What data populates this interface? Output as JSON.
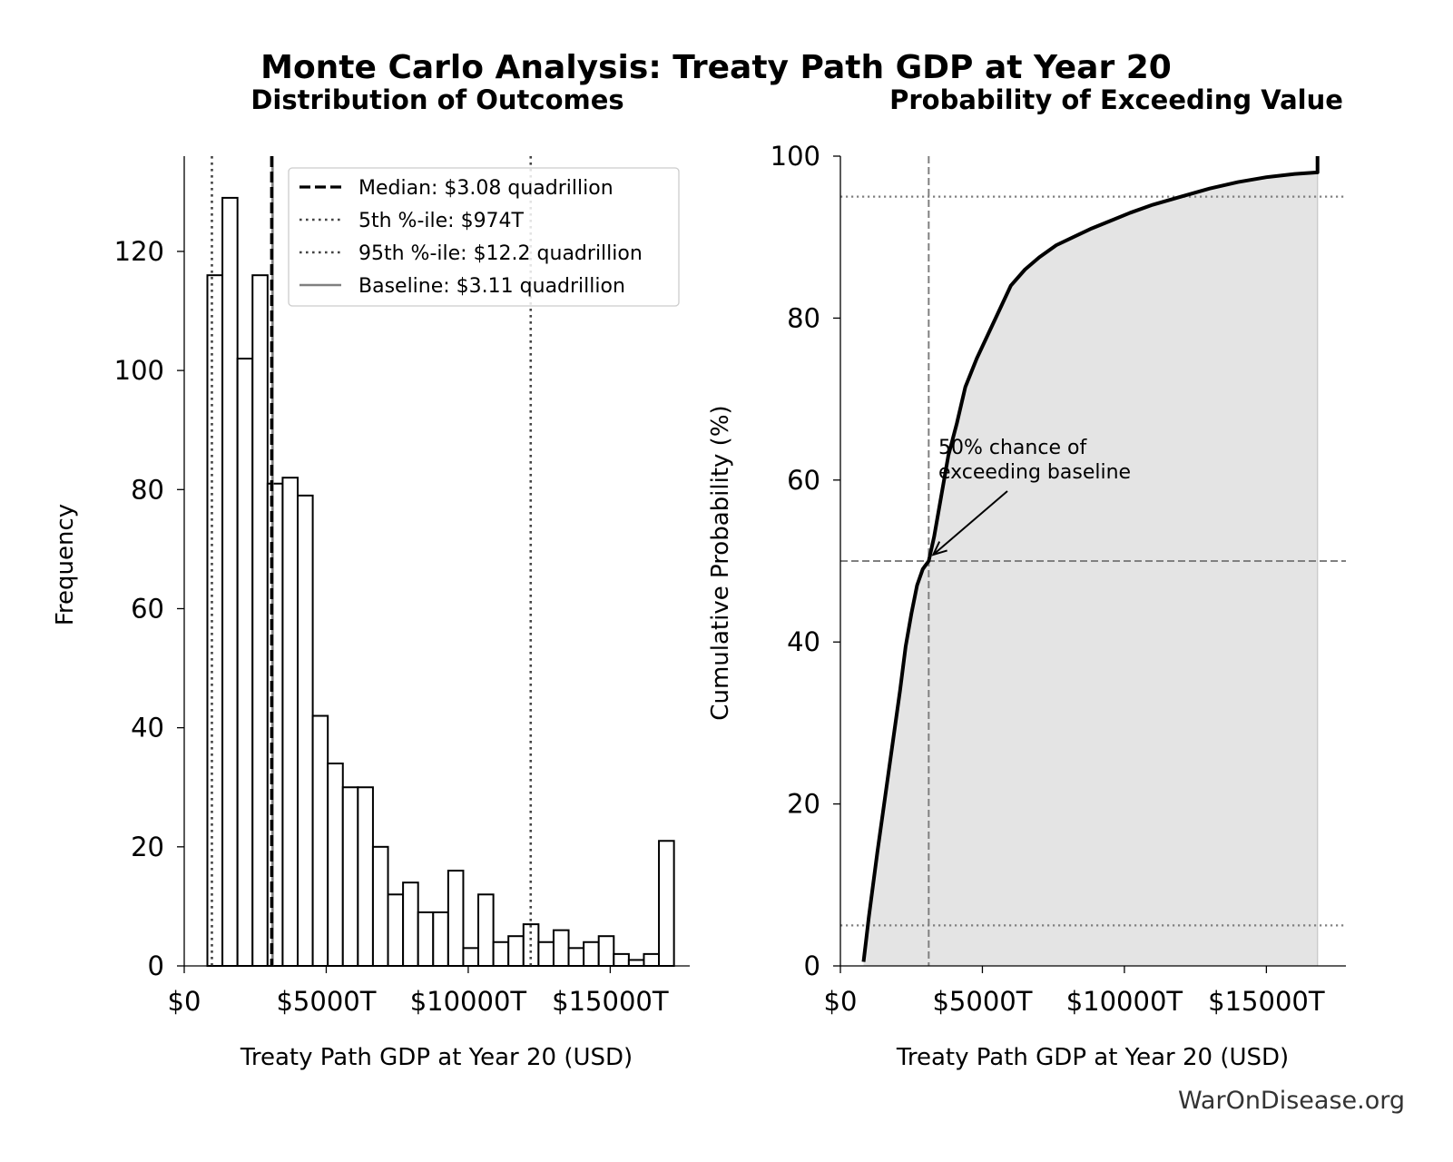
{
  "title": "Monte Carlo Analysis: Treaty Path GDP at Year 20",
  "watermark": "WarOnDisease.org",
  "colors": {
    "bar_fill": "#ffffff",
    "bar_edge": "#000000",
    "median_line": "#000000",
    "percentile_line": "#444444",
    "baseline_line": "#808080",
    "cdf_line": "#000000",
    "cdf_fill": "#e4e4e4",
    "reference_line": "#808080"
  },
  "chart_data": [
    {
      "type": "bar",
      "subtitle": "Distribution of Outcomes",
      "xlabel": "Treaty Path GDP at Year 20 (USD)",
      "ylabel": "Frequency",
      "xlim": [
        0,
        17800
      ],
      "ylim": [
        0,
        136
      ],
      "xticks": [
        0,
        5000,
        10000,
        15000
      ],
      "xtick_labels": [
        "$0",
        "$5000T",
        "$10000T",
        "$15000T"
      ],
      "yticks": [
        0,
        20,
        40,
        60,
        80,
        100,
        120
      ],
      "ytick_labels": [
        "0",
        "20",
        "40",
        "60",
        "80",
        "100",
        "120"
      ],
      "grid": false,
      "bin_start": 815,
      "bin_width": 530,
      "values": [
        116,
        129,
        102,
        116,
        81,
        82,
        79,
        42,
        34,
        30,
        30,
        20,
        12,
        14,
        9,
        9,
        16,
        3,
        12,
        4,
        5,
        7,
        4,
        6,
        3,
        4,
        5,
        2,
        1,
        2,
        21
      ],
      "vlines": [
        {
          "label": "Median: $3.08 quadrillion",
          "x": 3080,
          "style": "dashed"
        },
        {
          "label": "5th %-ile: $974T",
          "x": 974,
          "style": "dotted"
        },
        {
          "label": "95th %-ile: $12.2 quadrillion",
          "x": 12200,
          "style": "dotted"
        },
        {
          "label": "Baseline: $3.11 quadrillion",
          "x": 3110,
          "style": "solid"
        }
      ],
      "legend_position": "upper-right"
    },
    {
      "type": "area",
      "subtitle": "Probability of Exceeding Value",
      "xlabel": "Treaty Path GDP at Year 20 (USD)",
      "ylabel": "Cumulative Probability (%)",
      "xlim": [
        0,
        17800
      ],
      "ylim": [
        0,
        100
      ],
      "xticks": [
        0,
        5000,
        10000,
        15000
      ],
      "xtick_labels": [
        "$0",
        "$5000T",
        "$10000T",
        "$15000T"
      ],
      "yticks": [
        0,
        20,
        40,
        60,
        80,
        100
      ],
      "ytick_labels": [
        "0",
        "20",
        "40",
        "60",
        "80",
        "100"
      ],
      "grid": false,
      "x": [
        815,
        900,
        1000,
        1150,
        1300,
        1500,
        1700,
        1900,
        2100,
        2300,
        2500,
        2700,
        2900,
        3110,
        3300,
        3550,
        3800,
        4100,
        4400,
        4800,
        5200,
        5600,
        6000,
        6500,
        7000,
        7600,
        8200,
        8800,
        9500,
        10200,
        11000,
        12000,
        13000,
        14000,
        15000,
        16000,
        16800,
        16800
      ],
      "y": [
        0.5,
        3,
        6,
        10,
        14,
        19,
        24,
        29,
        34,
        39.5,
        43.5,
        47,
        49,
        50,
        53,
        58,
        63,
        67,
        71.5,
        75,
        78,
        81,
        84,
        86,
        87.5,
        89,
        90,
        91,
        92,
        93,
        94,
        95,
        96,
        96.8,
        97.4,
        97.8,
        98,
        100
      ],
      "hlines": [
        {
          "y": 95,
          "style": "dotted"
        },
        {
          "y": 50,
          "style": "dashed"
        },
        {
          "y": 5,
          "style": "dotted"
        }
      ],
      "vline": {
        "x": 3110,
        "style": "dashed"
      },
      "annotation": {
        "text_line1": "50% chance of",
        "text_line2": "exceeding baseline",
        "point": {
          "x": 3110,
          "y": 50
        }
      }
    }
  ]
}
